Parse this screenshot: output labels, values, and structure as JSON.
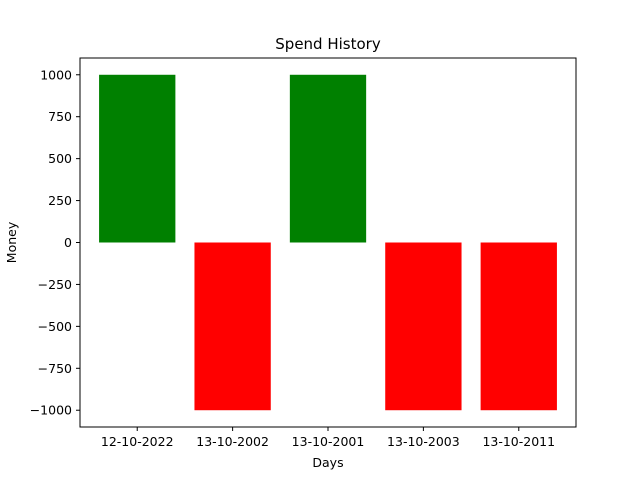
{
  "chart_data": {
    "type": "bar",
    "title": "Spend History",
    "xlabel": "Days",
    "ylabel": "Money",
    "categories": [
      "12-10-2022",
      "13-10-2002",
      "13-10-2001",
      "13-10-2003",
      "13-10-2011"
    ],
    "values": [
      1000,
      -1000,
      1000,
      -1000,
      -1000
    ],
    "ylim": [
      -1100,
      1100
    ],
    "yticks": [
      1000,
      750,
      500,
      250,
      0,
      -250,
      -500,
      -750,
      -1000
    ],
    "ytick_labels": [
      "1000",
      "750",
      "500",
      "250",
      "0",
      "−250",
      "−500",
      "−750",
      "−1000"
    ],
    "positive_color": "#008000",
    "negative_color": "#ff0000",
    "grid": false,
    "legend": "none"
  }
}
